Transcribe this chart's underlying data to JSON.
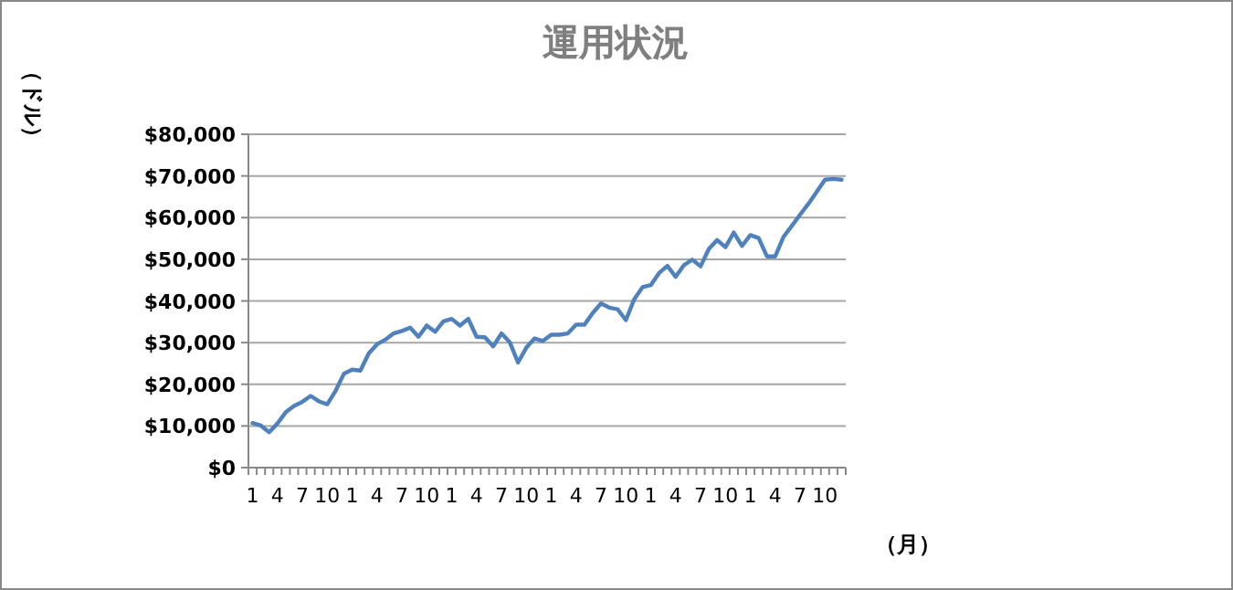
{
  "chart_data": {
    "type": "line",
    "title": "運用状況",
    "ylabel": "（ドル）",
    "xlabel": "（月）",
    "categories": [
      "1",
      null,
      null,
      "4",
      null,
      null,
      "7",
      null,
      null,
      "10",
      null,
      null,
      "1",
      null,
      null,
      "4",
      null,
      null,
      "7",
      null,
      null,
      "10",
      null,
      null,
      "1",
      null,
      null,
      "4",
      null,
      null,
      "7",
      null,
      null,
      "10",
      null,
      null,
      "1",
      null,
      null,
      "4",
      null,
      null,
      "7",
      null,
      null,
      "10",
      null,
      null,
      "1",
      null,
      null,
      "4",
      null,
      null,
      "7",
      null,
      null,
      "10",
      null,
      null,
      "1",
      null,
      null,
      "4",
      null,
      null,
      "7",
      null,
      null,
      "10",
      null,
      null
    ],
    "series": [
      {
        "color": "#4f81bd",
        "values": [
          10700,
          10100,
          8500,
          10600,
          13300,
          14800,
          15800,
          17200,
          15900,
          15200,
          18400,
          22500,
          23500,
          23300,
          27400,
          29600,
          30700,
          32200,
          32800,
          33600,
          31400,
          34100,
          32600,
          35100,
          35700,
          34100,
          35700,
          31400,
          31300,
          29100,
          32200,
          30100,
          25200,
          28800,
          31000,
          30400,
          31900,
          31900,
          32200,
          34300,
          34300,
          37100,
          39400,
          38400,
          38000,
          35400,
          40400,
          43300,
          43800,
          46700,
          48400,
          45800,
          48600,
          49900,
          48300,
          52500,
          54600,
          52900,
          56400,
          53200,
          55800,
          55100,
          50700,
          50700,
          55400,
          58000,
          60700,
          63300,
          66200,
          69100,
          69300,
          69100
        ]
      }
    ],
    "ylim": [
      0,
      80000
    ],
    "yticks": [
      {
        "value": 0,
        "label": "$0"
      },
      {
        "value": 10000,
        "label": "$10,000"
      },
      {
        "value": 20000,
        "label": "$20,000"
      },
      {
        "value": 30000,
        "label": "$30,000"
      },
      {
        "value": 40000,
        "label": "$40,000"
      },
      {
        "value": 50000,
        "label": "$50,000"
      },
      {
        "value": 60000,
        "label": "$60,000"
      },
      {
        "value": 70000,
        "label": "$70,000"
      },
      {
        "value": 80000,
        "label": "$80,000"
      }
    ],
    "grid": "y",
    "marker": "none",
    "line_style": "solid"
  }
}
